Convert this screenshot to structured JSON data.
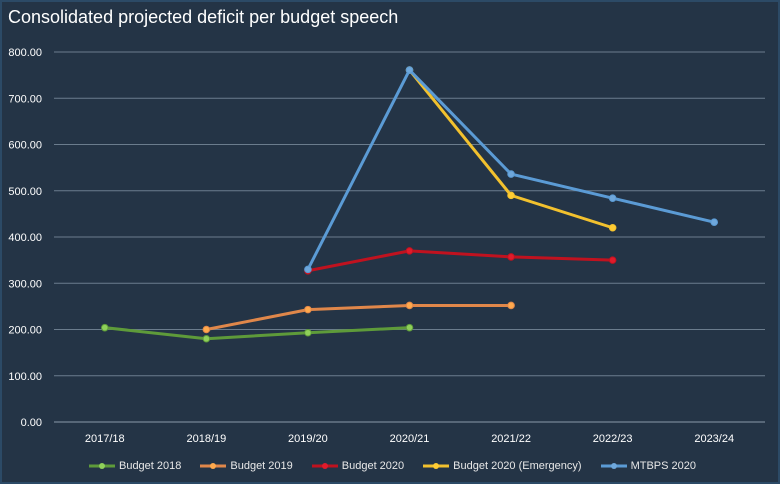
{
  "chart_data": {
    "type": "line",
    "title": "Consolidated projected deficit per budget speech",
    "xlabel": "",
    "ylabel": "",
    "categories": [
      "2017/18",
      "2018/19",
      "2019/20",
      "2020/21",
      "2021/22",
      "2022/23",
      "2023/24"
    ],
    "ylim": [
      0,
      800
    ],
    "yticks": [
      "0.00",
      "100.00",
      "200.00",
      "300.00",
      "400.00",
      "500.00",
      "600.00",
      "700.00",
      "800.00"
    ],
    "grid": true,
    "legend_position": "bottom",
    "series": [
      {
        "name": "Budget 2018",
        "color": "#5e9b3a",
        "marker": "#8fd05a",
        "values": [
          204,
          180,
          193,
          204,
          null,
          null,
          null
        ]
      },
      {
        "name": "Budget 2019",
        "color": "#e0874a",
        "marker": "#ffa94d",
        "values": [
          null,
          200,
          243,
          252,
          252,
          null,
          null
        ]
      },
      {
        "name": "Budget 2020",
        "color": "#c0121f",
        "marker": "#e01b2b",
        "values": [
          null,
          null,
          327,
          370,
          357,
          350,
          null
        ]
      },
      {
        "name": "Budget 2020 (Emergency)",
        "color": "#f2c12e",
        "marker": "#ffcc33",
        "values": [
          null,
          null,
          null,
          761,
          490,
          420,
          null
        ]
      },
      {
        "name": "MTBPS 2020",
        "color": "#5b9bd5",
        "marker": "#6fa8dc",
        "values": [
          null,
          null,
          330,
          761,
          536,
          484,
          432
        ]
      }
    ]
  }
}
